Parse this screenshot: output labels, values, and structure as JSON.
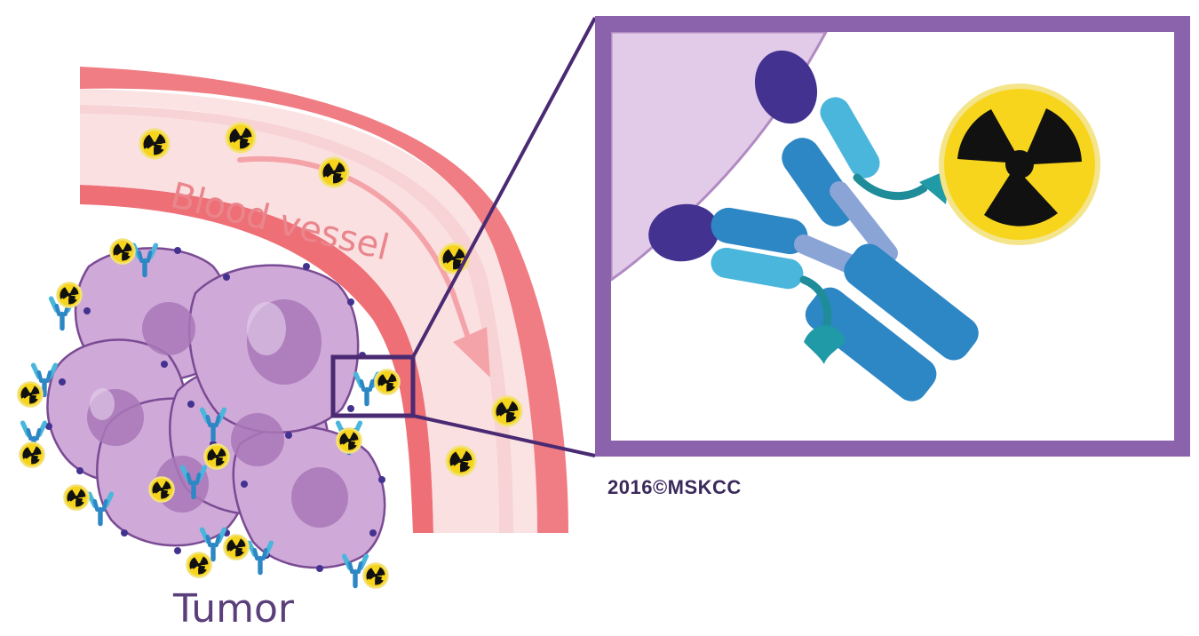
{
  "labels": {
    "blood_vessel": "Blood vessel",
    "tumor": "Tumor",
    "copyright": "2016©MSKCC"
  },
  "colors": {
    "vessel_wall": "#ee6f76",
    "vessel_lumen": "#f9c9cc",
    "cell_fill": "#c9a3d2",
    "cell_nucleus": "#a978b8",
    "cell_outline": "#7a4b94",
    "inset_frame": "#8b62ac",
    "antigen": "#43328f",
    "antibody_light": "#4ab6dc",
    "antibody_dark": "#2d87c4",
    "linker": "#1f8c9a",
    "radionuclide_fill": "#f7d51d",
    "radionuclide_mark": "#111111"
  },
  "icons": {
    "radionuclide": "radiation-trefoil-icon",
    "antibody": "antibody-icon",
    "antigen": "antigen-icon"
  }
}
